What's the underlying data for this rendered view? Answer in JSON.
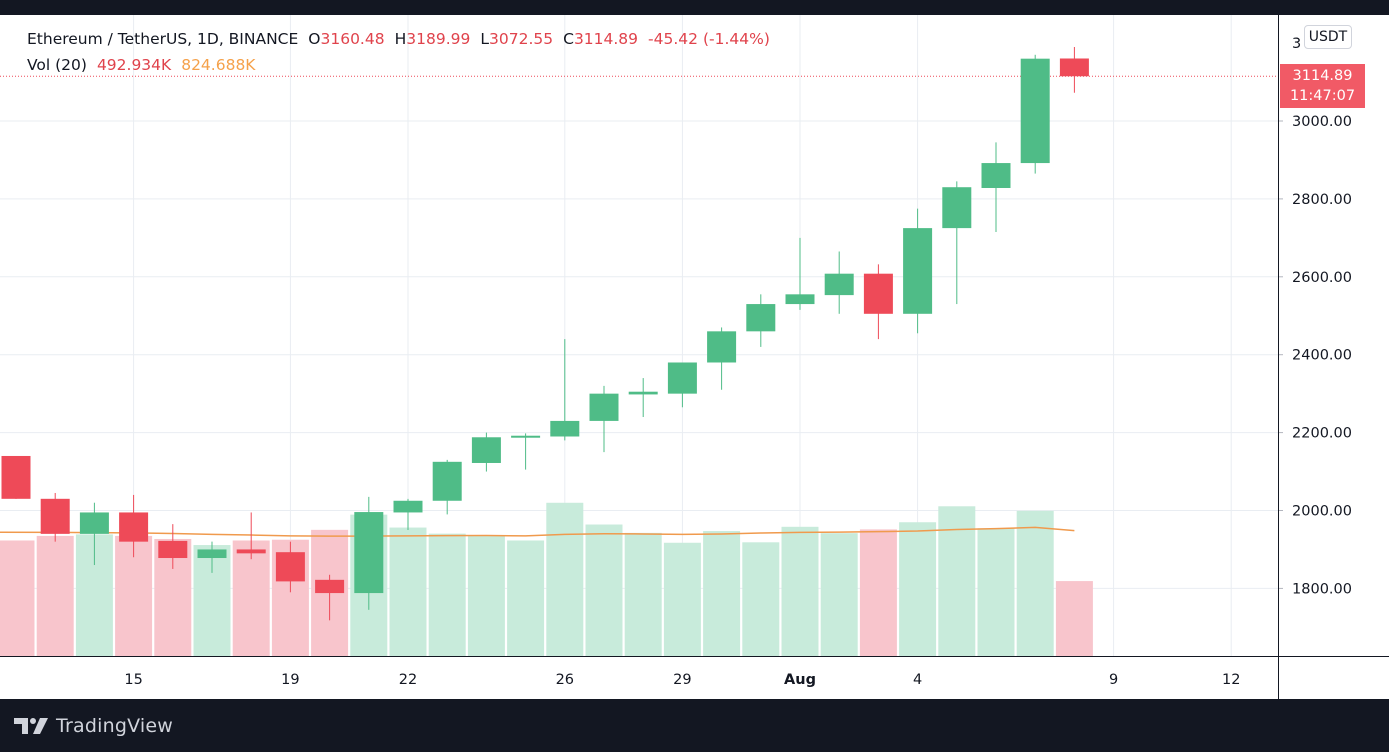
{
  "legend": {
    "symbol": "Ethereum / TetherUS, 1D, BINANCE",
    "o_label": "O",
    "o_value": "3160.48",
    "h_label": "H",
    "h_value": "3189.99",
    "l_label": "L",
    "l_value": "3072.55",
    "c_label": "C",
    "c_value": "3114.89",
    "change": "-45.42 (-1.44%)",
    "vol_label": "Vol (20)",
    "vol_value": "492.934K",
    "vol_ma_value": "824.688K"
  },
  "currency_button": "USDT",
  "last_price": {
    "price": "3114.89",
    "countdown": "11:47:07"
  },
  "brand": "TradingView",
  "colors": {
    "up": "#4fbc87",
    "down": "#ee4a58",
    "vol_up": "#c8ebdb",
    "vol_down": "#f8c5cc",
    "ma_line": "#f09a4d",
    "grid": "#e9edf2",
    "background": "#ffffff",
    "frame": "#131722"
  },
  "chart_data": {
    "type": "candlestick",
    "symbol": "ETHUSDT",
    "interval": "1D",
    "ylim": [
      1660,
      3240
    ],
    "y_ticks": [
      "1800.00",
      "2000.00",
      "2200.00",
      "2400.00",
      "2600.00",
      "2800.00",
      "3000.00"
    ],
    "y_top_tick_partial": "3",
    "x_ticks": [
      {
        "label": "15",
        "day": 15
      },
      {
        "label": "19",
        "day": 19
      },
      {
        "label": "22",
        "day": 22
      },
      {
        "label": "26",
        "day": 26
      },
      {
        "label": "29",
        "day": 29
      },
      {
        "label": "Aug",
        "day": 32
      },
      {
        "label": "4",
        "day": 35
      },
      {
        "label": "9",
        "day": 40
      },
      {
        "label": "12",
        "day": 43
      }
    ],
    "candles": [
      {
        "day": 12,
        "o": 2140,
        "h": 2140,
        "l": 2030,
        "c": 2030
      },
      {
        "day": 13,
        "o": 2030,
        "h": 2045,
        "l": 1920,
        "c": 1940
      },
      {
        "day": 14,
        "o": 1940,
        "h": 2020,
        "l": 1860,
        "c": 1995
      },
      {
        "day": 15,
        "o": 1995,
        "h": 2040,
        "l": 1880,
        "c": 1920
      },
      {
        "day": 16,
        "o": 1922,
        "h": 1965,
        "l": 1850,
        "c": 1878
      },
      {
        "day": 17,
        "o": 1878,
        "h": 1920,
        "l": 1840,
        "c": 1900
      },
      {
        "day": 18,
        "o": 1900,
        "h": 1995,
        "l": 1875,
        "c": 1890
      },
      {
        "day": 19,
        "o": 1893,
        "h": 1920,
        "l": 1790,
        "c": 1818
      },
      {
        "day": 20,
        "o": 1822,
        "h": 1835,
        "l": 1718,
        "c": 1788
      },
      {
        "day": 21,
        "o": 1788,
        "h": 2035,
        "l": 1745,
        "c": 1996
      },
      {
        "day": 22,
        "o": 1995,
        "h": 2030,
        "l": 1950,
        "c": 2025
      },
      {
        "day": 23,
        "o": 2025,
        "h": 2130,
        "l": 1990,
        "c": 2125
      },
      {
        "day": 24,
        "o": 2122,
        "h": 2200,
        "l": 2100,
        "c": 2188
      },
      {
        "day": 25,
        "o": 2187,
        "h": 2198,
        "l": 2105,
        "c": 2192
      },
      {
        "day": 26,
        "o": 2190,
        "h": 2440,
        "l": 2180,
        "c": 2230
      },
      {
        "day": 27,
        "o": 2230,
        "h": 2320,
        "l": 2150,
        "c": 2300
      },
      {
        "day": 28,
        "o": 2298,
        "h": 2340,
        "l": 2240,
        "c": 2305
      },
      {
        "day": 29,
        "o": 2300,
        "h": 2380,
        "l": 2265,
        "c": 2380
      },
      {
        "day": 30,
        "o": 2380,
        "h": 2470,
        "l": 2310,
        "c": 2460
      },
      {
        "day": 31,
        "o": 2460,
        "h": 2555,
        "l": 2420,
        "c": 2530
      },
      {
        "day": 32,
        "o": 2530,
        "h": 2700,
        "l": 2515,
        "c": 2555
      },
      {
        "day": 33,
        "o": 2553,
        "h": 2665,
        "l": 2505,
        "c": 2608
      },
      {
        "day": 34,
        "o": 2608,
        "h": 2632,
        "l": 2440,
        "c": 2505
      },
      {
        "day": 35,
        "o": 2505,
        "h": 2775,
        "l": 2455,
        "c": 2725
      },
      {
        "day": 36,
        "o": 2725,
        "h": 2845,
        "l": 2530,
        "c": 2830
      },
      {
        "day": 37,
        "o": 2828,
        "h": 2945,
        "l": 2715,
        "c": 2892
      },
      {
        "day": 38,
        "o": 2892,
        "h": 3170,
        "l": 2865,
        "c": 3160
      },
      {
        "day": 39,
        "o": 3160.48,
        "h": 3189.99,
        "l": 3072.55,
        "c": 3114.89
      }
    ],
    "volume": {
      "unit": "K",
      "values": [
        {
          "day": 12,
          "v": 760,
          "dir": "down"
        },
        {
          "day": 13,
          "v": 790,
          "dir": "down"
        },
        {
          "day": 14,
          "v": 800,
          "dir": "up"
        },
        {
          "day": 15,
          "v": 790,
          "dir": "down"
        },
        {
          "day": 16,
          "v": 770,
          "dir": "down"
        },
        {
          "day": 17,
          "v": 730,
          "dir": "up"
        },
        {
          "day": 18,
          "v": 760,
          "dir": "down"
        },
        {
          "day": 19,
          "v": 765,
          "dir": "down"
        },
        {
          "day": 20,
          "v": 830,
          "dir": "down"
        },
        {
          "day": 21,
          "v": 930,
          "dir": "up"
        },
        {
          "day": 22,
          "v": 845,
          "dir": "up"
        },
        {
          "day": 23,
          "v": 805,
          "dir": "up"
        },
        {
          "day": 24,
          "v": 790,
          "dir": "up"
        },
        {
          "day": 25,
          "v": 760,
          "dir": "up"
        },
        {
          "day": 26,
          "v": 1008,
          "dir": "up"
        },
        {
          "day": 27,
          "v": 865,
          "dir": "up"
        },
        {
          "day": 28,
          "v": 810,
          "dir": "up"
        },
        {
          "day": 29,
          "v": 745,
          "dir": "up"
        },
        {
          "day": 30,
          "v": 822,
          "dir": "up"
        },
        {
          "day": 31,
          "v": 748,
          "dir": "up"
        },
        {
          "day": 32,
          "v": 850,
          "dir": "up"
        },
        {
          "day": 33,
          "v": 808,
          "dir": "up"
        },
        {
          "day": 34,
          "v": 833,
          "dir": "down"
        },
        {
          "day": 35,
          "v": 880,
          "dir": "up"
        },
        {
          "day": 36,
          "v": 985,
          "dir": "up"
        },
        {
          "day": 37,
          "v": 840,
          "dir": "up"
        },
        {
          "day": 38,
          "v": 955,
          "dir": "up"
        },
        {
          "day": 39,
          "v": 492.934,
          "dir": "down"
        }
      ],
      "ma20": [
        {
          "day": 12,
          "v": 814
        },
        {
          "day": 13,
          "v": 813
        },
        {
          "day": 14,
          "v": 812
        },
        {
          "day": 15,
          "v": 810
        },
        {
          "day": 16,
          "v": 806
        },
        {
          "day": 17,
          "v": 800
        },
        {
          "day": 18,
          "v": 796
        },
        {
          "day": 19,
          "v": 790
        },
        {
          "day": 20,
          "v": 789
        },
        {
          "day": 21,
          "v": 789
        },
        {
          "day": 22,
          "v": 790
        },
        {
          "day": 23,
          "v": 792
        },
        {
          "day": 24,
          "v": 793
        },
        {
          "day": 25,
          "v": 790
        },
        {
          "day": 26,
          "v": 800
        },
        {
          "day": 27,
          "v": 804
        },
        {
          "day": 28,
          "v": 803
        },
        {
          "day": 29,
          "v": 800
        },
        {
          "day": 30,
          "v": 803
        },
        {
          "day": 31,
          "v": 809
        },
        {
          "day": 32,
          "v": 813
        },
        {
          "day": 33,
          "v": 815
        },
        {
          "day": 34,
          "v": 818
        },
        {
          "day": 35,
          "v": 822
        },
        {
          "day": 36,
          "v": 832
        },
        {
          "day": 37,
          "v": 838
        },
        {
          "day": 38,
          "v": 846
        },
        {
          "day": 39,
          "v": 824.688
        }
      ]
    }
  }
}
